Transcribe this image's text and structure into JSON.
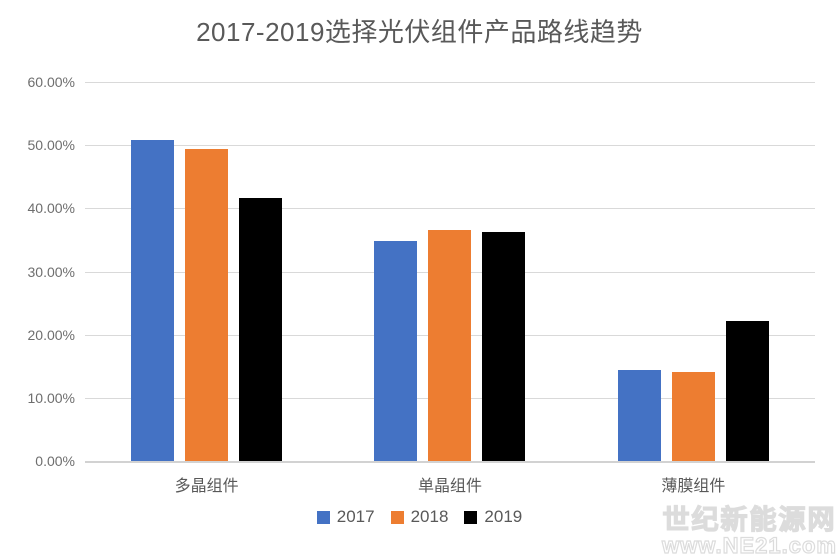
{
  "title": "2017-2019选择光伏组件产品路线趋势",
  "chart_data": {
    "type": "bar",
    "title": "2017-2019选择光伏组件产品路线趋势",
    "categories": [
      "多晶组件",
      "单晶组件",
      "薄膜组件"
    ],
    "series": [
      {
        "name": "2017",
        "color": "#4472C4",
        "values": [
          50.8,
          34.8,
          14.4
        ]
      },
      {
        "name": "2018",
        "color": "#ED7D31",
        "values": [
          49.4,
          36.5,
          14.1
        ]
      },
      {
        "name": "2019",
        "color": "#000000",
        "values": [
          41.6,
          36.2,
          22.2
        ]
      }
    ],
    "xlabel": "",
    "ylabel": "",
    "ylim": [
      0,
      60
    ],
    "ytick_step": 10,
    "ytick_labels": [
      "60.00%",
      "50.00%",
      "40.00%",
      "30.00%",
      "20.00%",
      "10.00%",
      "0.00%"
    ],
    "value_unit": "percent",
    "grid": true,
    "gridline_color": "#D9D9D9",
    "legend_position": "bottom"
  },
  "legend": {
    "items": [
      {
        "label": "2017",
        "color": "#4472C4"
      },
      {
        "label": "2018",
        "color": "#ED7D31"
      },
      {
        "label": "2019",
        "color": "#000000"
      }
    ]
  },
  "watermark": {
    "line1": "世纪新能源网",
    "line2": "www.NE21.com"
  },
  "colors": {
    "title_text": "#595959",
    "axis_text": "#6E6E6E",
    "gridline": "#D9D9D9",
    "background": "#FFFFFF"
  }
}
